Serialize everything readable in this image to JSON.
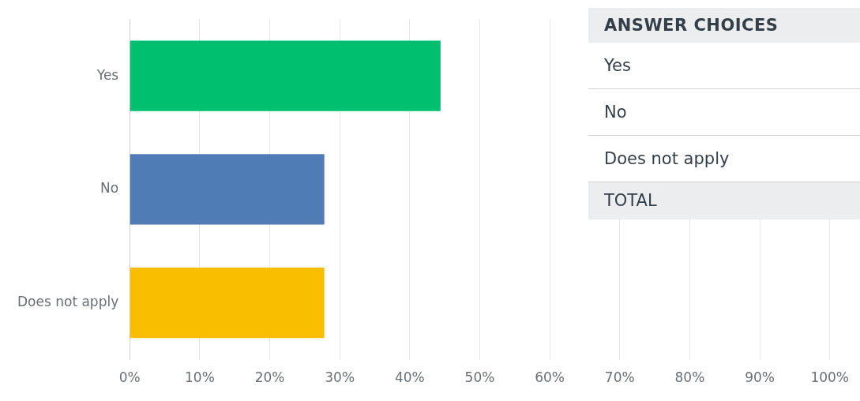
{
  "chart_data": {
    "type": "bar",
    "orientation": "horizontal",
    "categories": [
      "Yes",
      "No",
      "Does not apply"
    ],
    "values": [
      44.4,
      27.8,
      27.8
    ],
    "colors": [
      "#00bf6f",
      "#507cb6",
      "#f9be00"
    ],
    "xlim": [
      0,
      100
    ],
    "xticks": [
      {
        "value": 0,
        "label": "0%"
      },
      {
        "value": 10,
        "label": "10%"
      },
      {
        "value": 20,
        "label": "20%"
      },
      {
        "value": 30,
        "label": "30%"
      },
      {
        "value": 40,
        "label": "40%"
      },
      {
        "value": 50,
        "label": "50%"
      },
      {
        "value": 60,
        "label": "60%"
      },
      {
        "value": 70,
        "label": "70%"
      },
      {
        "value": 80,
        "label": "80%"
      },
      {
        "value": 90,
        "label": "90%"
      },
      {
        "value": 100,
        "label": "100%"
      }
    ],
    "grid": "x",
    "legend": false,
    "annotations": [
      "ANSWER CHOICES",
      "Yes",
      "No",
      "Does not apply",
      "TOTAL"
    ]
  }
}
